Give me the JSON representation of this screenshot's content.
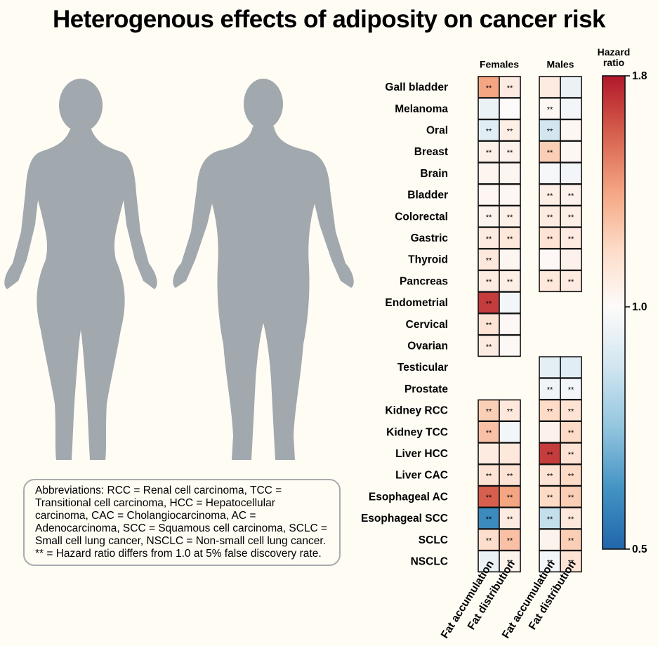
{
  "chart_data": {
    "type": "heatmap",
    "title": "Heterogenous effects of adiposity on cancer risk",
    "rows": [
      "Gall bladder",
      "Melanoma",
      "Oral",
      "Breast",
      "Brain",
      "Bladder",
      "Colorectal",
      "Gastric",
      "Thyroid",
      "Pancreas",
      "Endometrial",
      "Cervical",
      "Ovarian",
      "Testicular",
      "Prostate",
      "Kidney RCC",
      "Kidney TCC",
      "Liver HCC",
      "Liver CAC",
      "Esophageal AC",
      "Esophageal SCC",
      "SCLC",
      "NSCLC"
    ],
    "groups": [
      {
        "name": "Females",
        "series": [
          {
            "name": "Fat accumulation",
            "values": [
              1.4,
              0.95,
              0.92,
              1.07,
              1.04,
              1.03,
              1.05,
              1.1,
              1.12,
              1.1,
              1.7,
              1.15,
              1.1,
              null,
              null,
              1.25,
              1.3,
              1.1,
              1.15,
              1.6,
              0.6,
              1.18,
              0.95
            ],
            "labels": [
              "**",
              null,
              "**",
              "**",
              null,
              null,
              "**",
              "**",
              "**",
              "**",
              "**",
              "**",
              "**",
              null,
              null,
              "**",
              "**",
              null,
              "**",
              "**",
              "**",
              "**",
              null
            ]
          },
          {
            "name": "Fat distribution",
            "values": [
              1.1,
              1.0,
              1.08,
              1.06,
              1.04,
              1.03,
              1.07,
              1.12,
              1.04,
              1.08,
              0.97,
              1.02,
              1.02,
              null,
              null,
              1.12,
              0.97,
              1.12,
              1.15,
              1.4,
              1.1,
              1.3,
              1.05
            ],
            "labels": [
              "**",
              null,
              "**",
              "**",
              null,
              null,
              "**",
              "**",
              null,
              "**",
              null,
              null,
              null,
              null,
              null,
              "**",
              null,
              null,
              "**",
              "**",
              "**",
              "**",
              "**"
            ]
          }
        ]
      },
      {
        "name": "Males",
        "series": [
          {
            "name": "Fat accumulation",
            "values": [
              1.1,
              1.03,
              0.88,
              1.25,
              0.98,
              1.08,
              1.1,
              1.15,
              1.02,
              1.12,
              null,
              null,
              null,
              0.93,
              0.96,
              1.2,
              1.06,
              1.7,
              1.15,
              1.2,
              0.85,
              1.05,
              0.97
            ],
            "labels": [
              null,
              "**",
              "**",
              "**",
              null,
              "**",
              "**",
              "**",
              null,
              "**",
              null,
              null,
              null,
              null,
              "**",
              "**",
              null,
              "**",
              "**",
              "**",
              "**",
              null,
              "**"
            ]
          },
          {
            "name": "Fat distribution",
            "values": [
              0.95,
              0.97,
              1.03,
              1.03,
              0.97,
              1.06,
              1.08,
              1.1,
              1.06,
              1.1,
              null,
              null,
              null,
              0.92,
              0.97,
              1.15,
              1.2,
              1.15,
              1.2,
              1.25,
              1.12,
              1.25,
              1.15
            ],
            "labels": [
              null,
              null,
              null,
              null,
              null,
              "**",
              "**",
              "**",
              null,
              "**",
              null,
              null,
              null,
              null,
              "**",
              "**",
              "**",
              "**",
              "**",
              "**",
              "**",
              "**",
              "**"
            ]
          }
        ]
      }
    ],
    "colorbar_label": "Hazard ratio",
    "clim": [
      0.5,
      1.8
    ],
    "center": {
      "value": 1,
      "label": "1.0"
    },
    "cticks": [
      0.5,
      {
        "value": 1,
        "label": "1.0"
      },
      1.8
    ],
    "colormap": [
      "#2166ac",
      "#4393c3",
      "#92c5de",
      "#d1e5f0",
      "#fdfbfa",
      "#fddbc7",
      "#f4a582",
      "#d6604d",
      "#b2182b"
    ],
    "note": "Abbreviations: RCC = Renal cell carcinoma, TCC = Transitional cell carcinoma, HCC = Hepatocellular carcinoma, CAC = Cholangiocarcinoma, AC = Adenocarcinoma, SCC = Squamous cell carcinoma, SCLC = Small cell lung cancer, NSCLC = Non-small cell lung cancer. ** = Hazard ratio differs from 1.0 at 5% false discovery rate."
  }
}
